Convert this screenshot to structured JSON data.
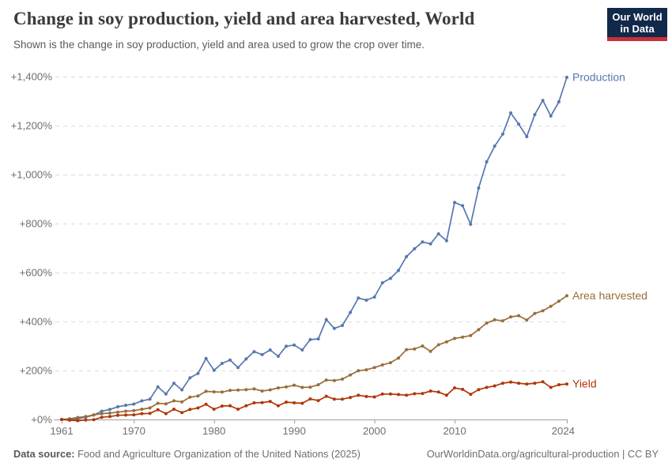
{
  "header": {
    "title": "Change in soy production, yield and area harvested, World",
    "subtitle": "Shown is the change in soy production, yield and area used to grow the crop over time."
  },
  "logo": {
    "line1": "Our World",
    "line2": "in Data",
    "bg_color": "#12294b",
    "accent_color": "#c7303a"
  },
  "chart_data": {
    "type": "line",
    "title": "Change in soy production, yield and area harvested, World",
    "units": "% change relative to 1961",
    "x": [
      1961,
      1962,
      1963,
      1964,
      1965,
      1966,
      1967,
      1968,
      1969,
      1970,
      1971,
      1972,
      1973,
      1974,
      1975,
      1976,
      1977,
      1978,
      1979,
      1980,
      1981,
      1982,
      1983,
      1984,
      1985,
      1986,
      1987,
      1988,
      1989,
      1990,
      1991,
      1992,
      1993,
      1994,
      1995,
      1996,
      1997,
      1998,
      1999,
      2000,
      2001,
      2002,
      2003,
      2004,
      2005,
      2006,
      2007,
      2008,
      2009,
      2010,
      2011,
      2012,
      2013,
      2014,
      2015,
      2016,
      2017,
      2018,
      2019,
      2020,
      2021,
      2022,
      2023,
      2024
    ],
    "series": [
      {
        "name": "Production",
        "color": "#5777b0",
        "values": [
          0,
          -1,
          3,
          9,
          18,
          34,
          41,
          52,
          58,
          63,
          76,
          83,
          133,
          104,
          148,
          121,
          170,
          188,
          249,
          201,
          229,
          243,
          212,
          247,
          277,
          265,
          284,
          258,
          299,
          304,
          284,
          326,
          329,
          408,
          372,
          384,
          437,
          496,
          487,
          500,
          558,
          576,
          609,
          665,
          697,
          725,
          717,
          758,
          730,
          886,
          873,
          797,
          945,
          1052,
          1116,
          1165,
          1252,
          1206,
          1155,
          1245,
          1303,
          1239,
          1297,
          1397
        ]
      },
      {
        "name": "Area harvested",
        "color": "#996d39",
        "values": [
          0,
          3,
          8,
          12,
          19,
          24,
          26,
          30,
          34,
          36,
          42,
          47,
          66,
          64,
          76,
          72,
          91,
          96,
          115,
          113,
          112,
          119,
          120,
          122,
          125,
          116,
          121,
          129,
          133,
          140,
          131,
          132,
          142,
          161,
          159,
          165,
          182,
          199,
          203,
          212,
          223,
          232,
          251,
          285,
          288,
          300,
          278,
          305,
          317,
          331,
          336,
          343,
          367,
          394,
          407,
          403,
          419,
          424,
          406,
          433,
          444,
          462,
          483,
          505
        ]
      },
      {
        "name": "Yield",
        "color": "#b13507",
        "values": [
          0,
          -3,
          -5,
          -2,
          -1,
          9,
          12,
          17,
          18,
          19,
          24,
          25,
          40,
          24,
          42,
          28,
          41,
          47,
          62,
          42,
          55,
          56,
          42,
          56,
          68,
          69,
          74,
          56,
          71,
          68,
          66,
          84,
          77,
          95,
          83,
          83,
          90,
          99,
          94,
          92,
          104,
          104,
          102,
          99,
          105,
          106,
          116,
          112,
          99,
          129,
          123,
          103,
          122,
          131,
          137,
          148,
          153,
          148,
          145,
          148,
          154,
          131,
          142,
          145
        ]
      }
    ],
    "xlabel": "",
    "ylabel": "",
    "ylim": [
      0,
      1400
    ],
    "yticks": {
      "values": [
        0,
        200,
        400,
        600,
        800,
        1000,
        1200,
        1400
      ],
      "labels": [
        "+0%",
        "+200%",
        "+400%",
        "+600%",
        "+800%",
        "+1,000%",
        "+1,200%",
        "+1,400%"
      ]
    },
    "xticks": {
      "values": [
        1961,
        1970,
        1980,
        1990,
        2000,
        2010,
        2024
      ],
      "labels": [
        "1961",
        "1970",
        "1980",
        "1990",
        "2000",
        "2010",
        "2024"
      ]
    },
    "grid": "horizontal dashed",
    "grid_color": "#dcdcdc",
    "axis_color": "#9e9e9e",
    "tick_label_color": "#6f6f6f",
    "legend": "line-end labels"
  },
  "footer": {
    "source_label": "Data source:",
    "source_text": " Food and Agriculture Organization of the United Nations (2025)",
    "attribution": "OurWorldinData.org/agricultural-production | CC BY"
  }
}
